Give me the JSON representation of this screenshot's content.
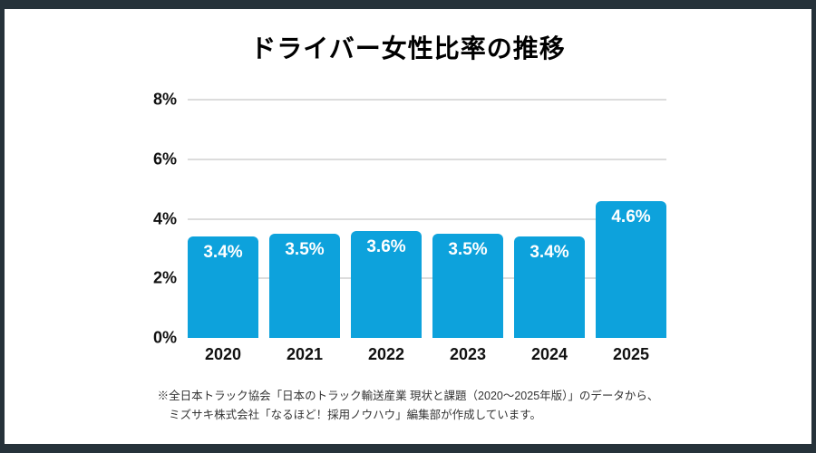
{
  "frame": {
    "border_color": "#26323a",
    "card_background": "#ffffff"
  },
  "title": "ドライバー女性比率の推移",
  "chart_data": {
    "type": "bar",
    "title": "ドライバー女性比率の推移",
    "categories": [
      "2020",
      "2021",
      "2022",
      "2023",
      "2024",
      "2025"
    ],
    "values": [
      3.4,
      3.5,
      3.6,
      3.5,
      3.4,
      4.6
    ],
    "value_labels": [
      "3.4%",
      "3.5%",
      "3.6%",
      "3.5%",
      "3.4%",
      "4.6%"
    ],
    "y_ticks": [
      0,
      2,
      4,
      6,
      8
    ],
    "y_tick_labels": [
      "0%",
      "2%",
      "4%",
      "6%",
      "8%"
    ],
    "ylim": [
      0,
      8
    ],
    "grid": "horizontal gridlines at 2,4,6,8; none at 0; drawn behind bars",
    "legend": "none",
    "bar_color": "#0da2dc",
    "bar_value_label_color": "#ffffff",
    "gridline_color": "#dcdcdc",
    "axis_label_color": "#111111"
  },
  "footnote": {
    "line1": "※全日本トラック協会「日本のトラック輸送産業 現状と課題（2020～2025年版）」のデータから、",
    "line2": "ミズサキ株式会社「なるほど！採用ノウハウ」編集部が作成しています。"
  }
}
